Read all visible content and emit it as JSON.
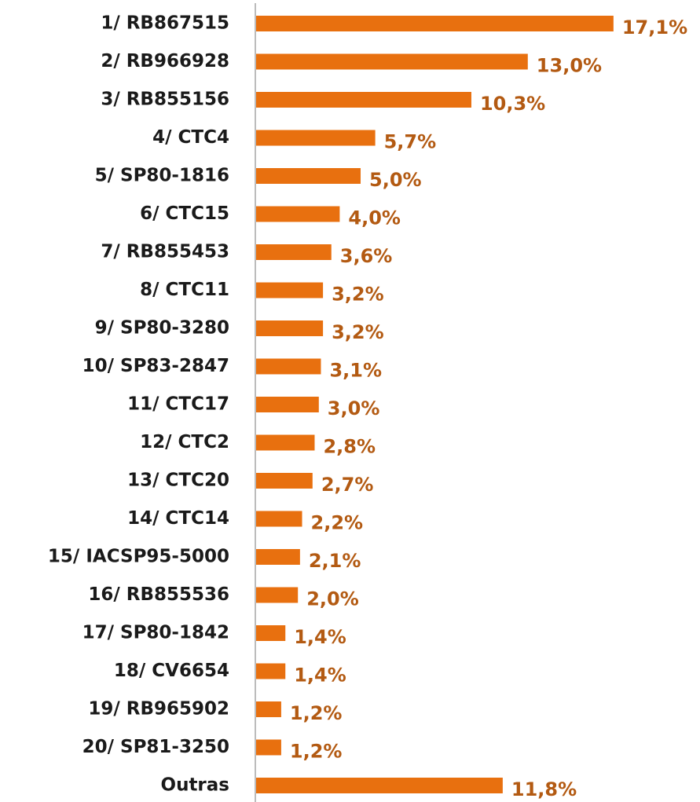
{
  "chart_data": {
    "type": "bar",
    "orientation": "horizontal",
    "categories": [
      "1/ RB867515",
      "2/ RB966928",
      "3/ RB855156",
      "4/ CTC4",
      "5/ SP80-1816",
      "6/ CTC15",
      "7/ RB855453",
      "8/ CTC11",
      "9/ SP80-3280",
      "10/ SP83-2847",
      "11/ CTC17",
      "12/ CTC2",
      "13/ CTC20",
      "14/ CTC14",
      "15/ IACSP95-5000",
      "16/ RB855536",
      "17/ SP80-1842",
      "18/ CV6654",
      "19/ RB965902",
      "20/ SP81-3250",
      "Outras"
    ],
    "values": [
      17.1,
      13.0,
      10.3,
      5.7,
      5.0,
      4.0,
      3.6,
      3.2,
      3.2,
      3.1,
      3.0,
      2.8,
      2.7,
      2.2,
      2.1,
      2.0,
      1.4,
      1.4,
      1.2,
      1.2,
      11.8
    ],
    "value_labels": [
      "17,1%",
      "13,0%",
      "10,3%",
      "5,7%",
      "5,0%",
      "4,0%",
      "3,6%",
      "3,2%",
      "3,2%",
      "3,1%",
      "3,0%",
      "2,8%",
      "2,7%",
      "2,2%",
      "2,1%",
      "2,0%",
      "1,4%",
      "1,4%",
      "1,2%",
      "1,2%",
      "11,8%"
    ],
    "color": "#e8700f"
  }
}
